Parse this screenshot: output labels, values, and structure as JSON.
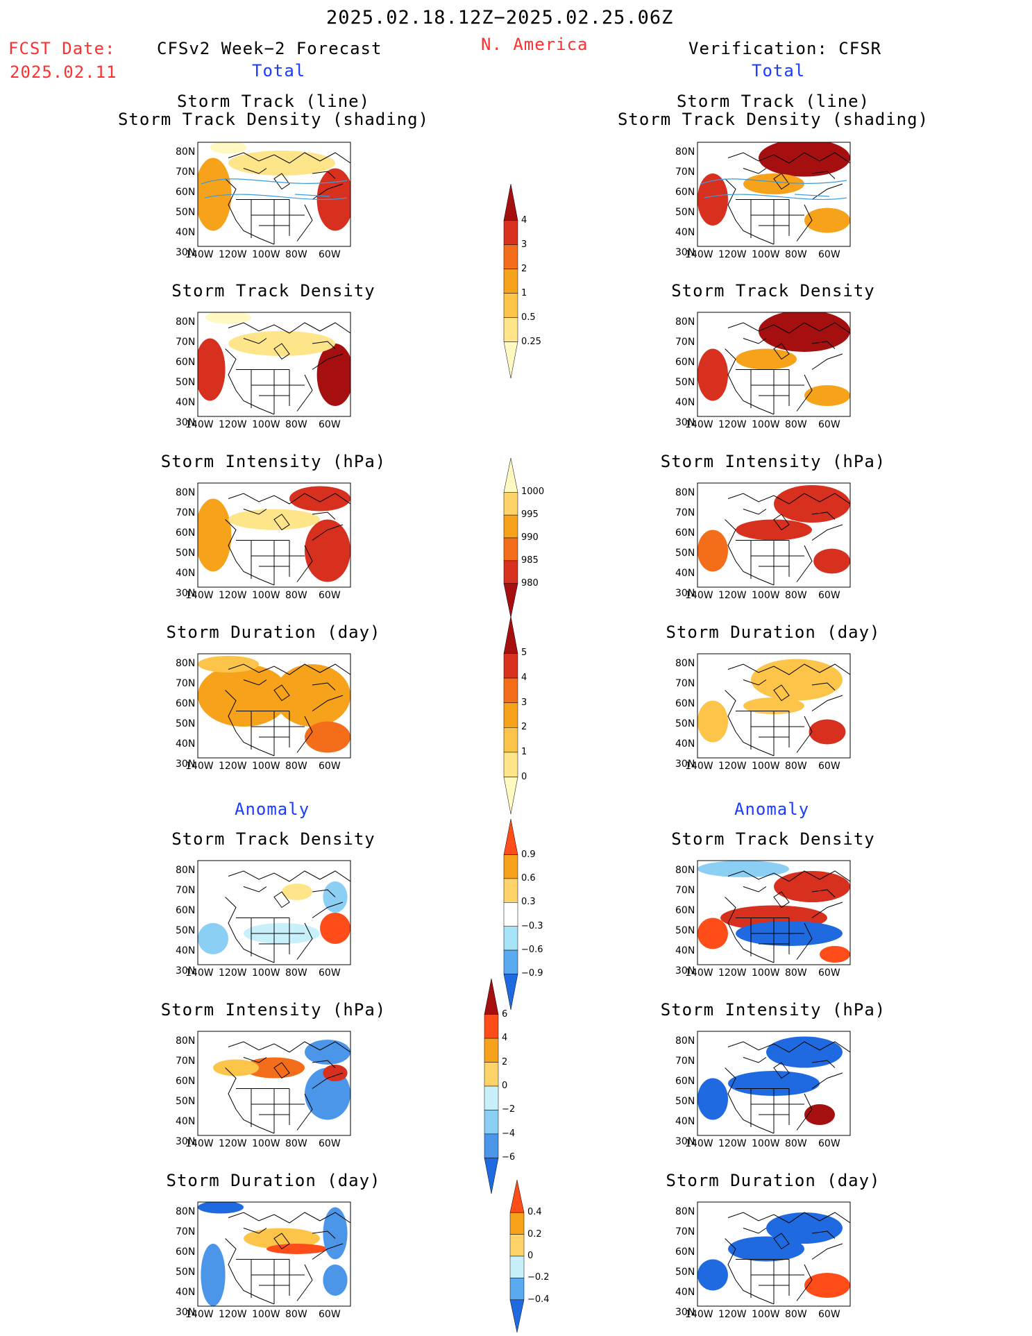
{
  "header": {
    "period": "2025.02.18.12Z−2025.02.25.06Z",
    "fcst_label": "FCST Date:",
    "fcst_date": "2025.02.11",
    "left_title": "CFSv2 Week−2 Forecast",
    "region": "N. America",
    "right_title": "Verification: CFSR",
    "total_left": "Total",
    "total_right": "Total",
    "anomaly_left": "Anomaly",
    "anomaly_right": "Anomaly"
  },
  "panels": {
    "track_line": "Storm Track (line)",
    "track_density_shading": "Storm Track Density (shading)",
    "track_density": "Storm Track Density",
    "intensity": "Storm Intensity (hPa)",
    "duration": "Storm Duration (day)"
  },
  "axes": {
    "lat_labels": [
      "80N",
      "70N",
      "60N",
      "50N",
      "40N",
      "30N"
    ],
    "lon_labels": [
      "140W",
      "120W",
      "100W",
      "80W",
      "60W"
    ]
  },
  "colorbars": {
    "density": {
      "labels": [
        "4",
        "3",
        "2",
        "1",
        "0.5",
        "0.25"
      ],
      "colors": [
        "#a50f0f",
        "#d7301f",
        "#f46d1a",
        "#f7a21b",
        "#fdc44a",
        "#fee58a",
        "#fff8c0"
      ]
    },
    "intensity": {
      "labels": [
        "1000",
        "995",
        "990",
        "985",
        "980"
      ],
      "colors": [
        "#fff8c0",
        "#fdd36a",
        "#f7a21b",
        "#f46d1a",
        "#d7301f",
        "#a50f0f"
      ]
    },
    "duration": {
      "labels": [
        "5",
        "4",
        "3",
        "2",
        "1",
        "0"
      ],
      "colors": [
        "#a50f0f",
        "#d7301f",
        "#f46d1a",
        "#f7a21b",
        "#fdc44a",
        "#fee58a",
        "#fff8c0"
      ]
    },
    "anom_density": {
      "labels": [
        "0.9",
        "0.6",
        "0.3",
        "−0.3",
        "−0.6",
        "−0.9"
      ],
      "colors": [
        "#ff4d1a",
        "#f7a21b",
        "#fdd36a",
        "#ffffff",
        "#a8e4f7",
        "#5aaaf0",
        "#1f6ae0"
      ]
    },
    "anom_intensity": {
      "labels": [
        "6",
        "4",
        "2",
        "0",
        "−2",
        "−4",
        "−6"
      ],
      "colors": [
        "#a50f0f",
        "#ff4d1a",
        "#f7a21b",
        "#fdd36a",
        "#c8f0fb",
        "#8ccff5",
        "#4c96ea",
        "#1f6ae0"
      ]
    },
    "anom_duration": {
      "labels": [
        "0.4",
        "0.2",
        "0",
        "−0.2",
        "−0.4"
      ],
      "colors": [
        "#ff4d1a",
        "#f7a21b",
        "#fdd36a",
        "#c8f0fb",
        "#5aaaf0",
        "#1f6ae0"
      ]
    }
  }
}
